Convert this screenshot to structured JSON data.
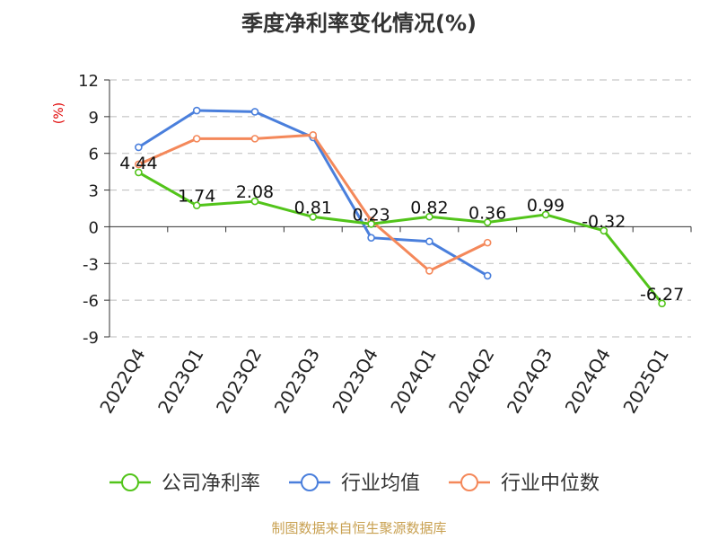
{
  "chart_data": {
    "type": "line",
    "title": "季度净利率变化情况(%)",
    "ylabel": "(%)",
    "ylim": [
      -9,
      12
    ],
    "yticks": [
      12,
      9,
      6,
      3,
      0,
      -3,
      -6,
      -9
    ],
    "grid": true,
    "legend_position": "bottom",
    "categories": [
      "2022Q4",
      "2023Q1",
      "2023Q2",
      "2023Q3",
      "2023Q4",
      "2024Q1",
      "2024Q2",
      "2024Q3",
      "2024Q4",
      "2025Q1"
    ],
    "series": [
      {
        "name": "公司净利率",
        "color": "#52c41a",
        "values": [
          4.44,
          1.74,
          2.08,
          0.81,
          0.23,
          0.82,
          0.36,
          0.99,
          -0.32,
          -6.27
        ],
        "labels": [
          "4.44",
          "1.74",
          "2.08",
          "0.81",
          "0.23",
          "0.82",
          "0.36",
          "0.99",
          "-0.32",
          "-6.27"
        ]
      },
      {
        "name": "行业均值",
        "color": "#4a7fdc",
        "values": [
          6.5,
          9.5,
          9.4,
          7.3,
          -0.9,
          -1.2,
          -4.0,
          null,
          null,
          null
        ]
      },
      {
        "name": "行业中位数",
        "color": "#f4885a",
        "values": [
          5.1,
          7.2,
          7.2,
          7.5,
          0.5,
          -3.6,
          -1.3,
          null,
          null,
          null
        ]
      }
    ],
    "source": "制图数据来自恒生聚源数据库"
  }
}
